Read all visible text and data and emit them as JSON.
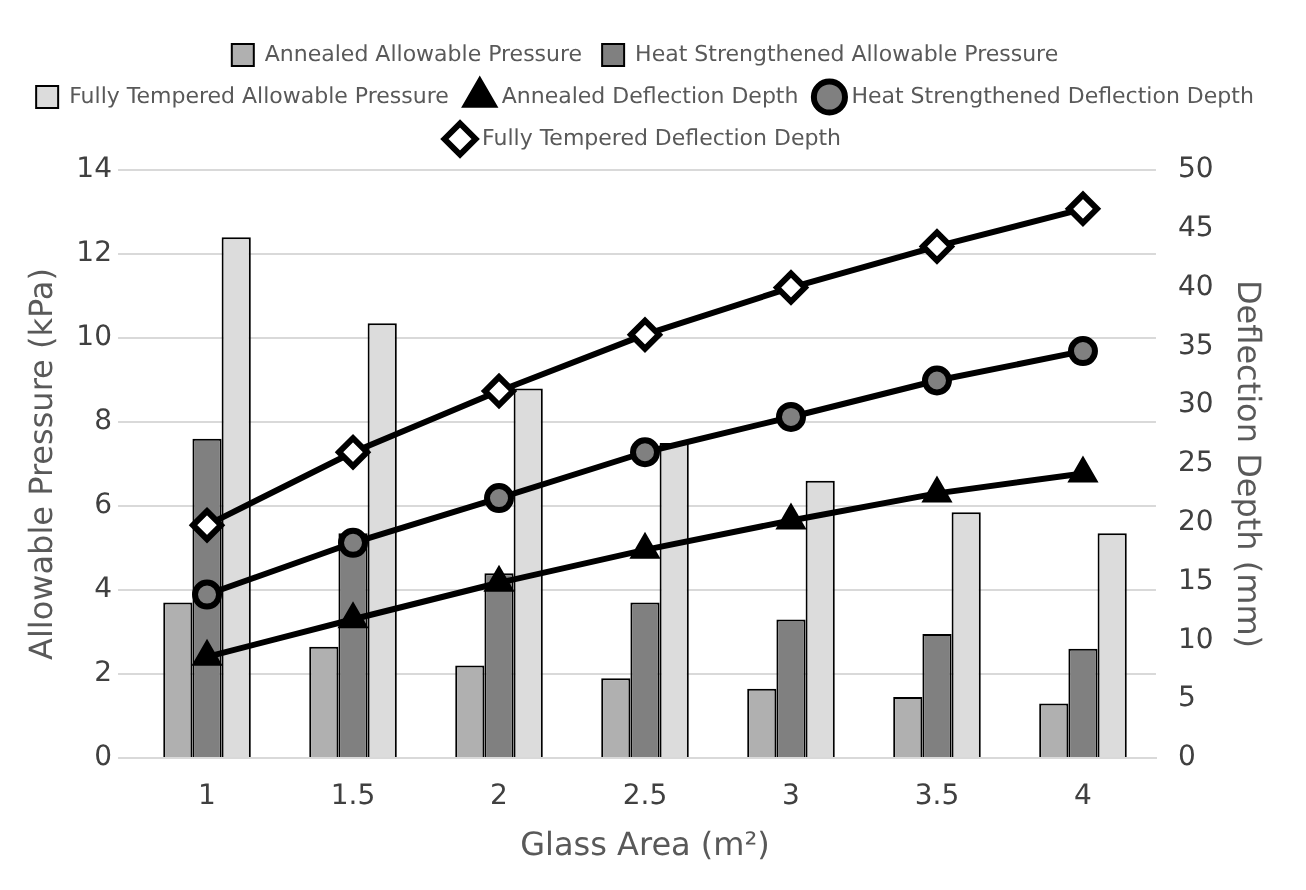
{
  "chart_data": {
    "type": "bar",
    "xlabel": "Glass Area (m²)",
    "ylabel": "Allowable Pressure (kPa)",
    "y2label": "Deflection Depth (mm)",
    "categories": [
      "1",
      "1.5",
      "2",
      "2.5",
      "3",
      "3.5",
      "4"
    ],
    "series": [
      {
        "name": "Annealed Allowable Pressure",
        "color": "#b0b0b0",
        "values": [
          3.7,
          2.65,
          2.2,
          1.9,
          1.65,
          1.45,
          1.3
        ]
      },
      {
        "name": "Heat Strengthened Allowable Pressure",
        "color": "#808080",
        "values": [
          7.6,
          5.35,
          4.4,
          3.7,
          3.3,
          2.95,
          2.6
        ]
      },
      {
        "name": "Fully Tempered Allowable Pressure",
        "color": "#dcdcdc",
        "values": [
          12.4,
          10.35,
          8.8,
          7.5,
          6.6,
          5.85,
          5.35
        ]
      },
      {
        "name": "Annealed Deflection Depth",
        "type": "line",
        "axis": "y2",
        "marker": "triangle",
        "color": "#000000",
        "values": [
          8.6,
          11.8,
          14.9,
          17.7,
          20.2,
          22.5,
          24.2
        ]
      },
      {
        "name": "Heat Strengthened Deflection Depth",
        "type": "line",
        "axis": "y2",
        "marker": "circle",
        "color": "#000000",
        "values": [
          13.9,
          18.3,
          22.1,
          26,
          29,
          32.1,
          34.6
        ]
      },
      {
        "name": "Fully Tempered Deflection Depth",
        "type": "line",
        "axis": "y2",
        "marker": "diamond",
        "color": "#000000",
        "values": [
          19.8,
          26,
          31.2,
          36,
          40,
          43.5,
          46.7
        ]
      }
    ],
    "ylim": [
      0,
      14
    ],
    "yticks": [
      0,
      2,
      4,
      6,
      8,
      10,
      12,
      14
    ],
    "y2lim": [
      0,
      50
    ],
    "y2ticks": [
      0,
      5,
      10,
      15,
      20,
      25,
      30,
      35,
      40,
      45,
      50
    ],
    "grid": "y",
    "legend": "top"
  }
}
